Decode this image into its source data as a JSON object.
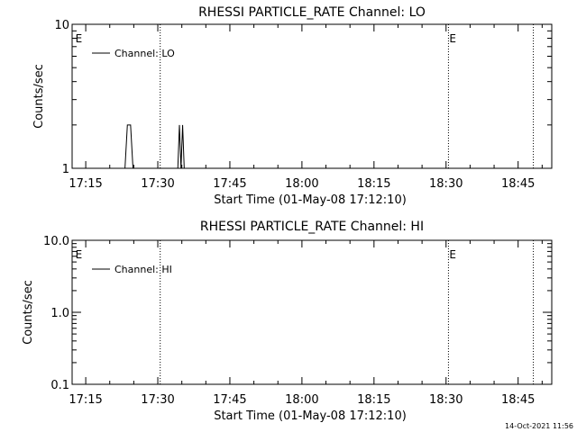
{
  "timestamp": "14-Oct-2021 11:56",
  "chart_data": [
    {
      "type": "line",
      "title": "RHESSI PARTICLE_RATE Channel: LO",
      "xlabel": "Start Time (01-May-08 17:12:10)",
      "ylabel": "Counts/sec",
      "ytick_labels": [
        "1",
        "10"
      ],
      "ytick_values": [
        1,
        10
      ],
      "y_scale": "log",
      "ylim": [
        1,
        10
      ],
      "xlim": [
        "17:12:10",
        "18:52:00"
      ],
      "xtick_labels": [
        "17:15",
        "17:30",
        "17:45",
        "18:00",
        "18:15",
        "18:30",
        "18:45"
      ],
      "xtick_values": [
        "17:15",
        "17:30",
        "17:45",
        "18:00",
        "18:15",
        "18:30",
        "18:45"
      ],
      "legend": {
        "label": "Channel: LO",
        "placement": "top-left"
      },
      "event_markers": [
        {
          "time": "17:12:40",
          "label": "E",
          "dotted_line": false
        },
        {
          "time": "17:30:30",
          "label": "",
          "dotted_line": true
        },
        {
          "time": "18:30:30",
          "label": "E",
          "dotted_line": true
        },
        {
          "time": "18:48:10",
          "label": "",
          "dotted_line": true
        }
      ],
      "series": [
        {
          "name": "Channel: LO",
          "x": [
            "17:23:10",
            "17:23:40",
            "17:24:20",
            "17:24:50",
            "17:34:10",
            "17:34:30",
            "17:34:50",
            "17:35:10",
            "17:35:30",
            "17:35:50"
          ],
          "y": [
            1,
            2,
            2,
            1,
            1,
            2,
            1,
            2,
            1,
            1
          ]
        }
      ]
    },
    {
      "type": "line",
      "title": "RHESSI PARTICLE_RATE Channel: HI",
      "xlabel": "Start Time (01-May-08 17:12:10)",
      "ylabel": "Counts/sec",
      "ytick_labels": [
        "0.1",
        "1.0",
        "10.0"
      ],
      "ytick_values": [
        0.1,
        1,
        10
      ],
      "y_scale": "log",
      "ylim": [
        0.1,
        10
      ],
      "xlim": [
        "17:12:10",
        "18:52:00"
      ],
      "xtick_labels": [
        "17:15",
        "17:30",
        "17:45",
        "18:00",
        "18:15",
        "18:30",
        "18:45"
      ],
      "xtick_values": [
        "17:15",
        "17:30",
        "17:45",
        "18:00",
        "18:15",
        "18:30",
        "18:45"
      ],
      "legend": {
        "label": "Channel: HI",
        "placement": "top-left"
      },
      "event_markers": [
        {
          "time": "17:12:40",
          "label": "E",
          "dotted_line": false
        },
        {
          "time": "17:30:30",
          "label": "",
          "dotted_line": true
        },
        {
          "time": "18:30:30",
          "label": "E",
          "dotted_line": true
        },
        {
          "time": "18:48:10",
          "label": "",
          "dotted_line": true
        }
      ],
      "series": [
        {
          "name": "Channel: HI",
          "x": [],
          "y": []
        }
      ]
    }
  ]
}
